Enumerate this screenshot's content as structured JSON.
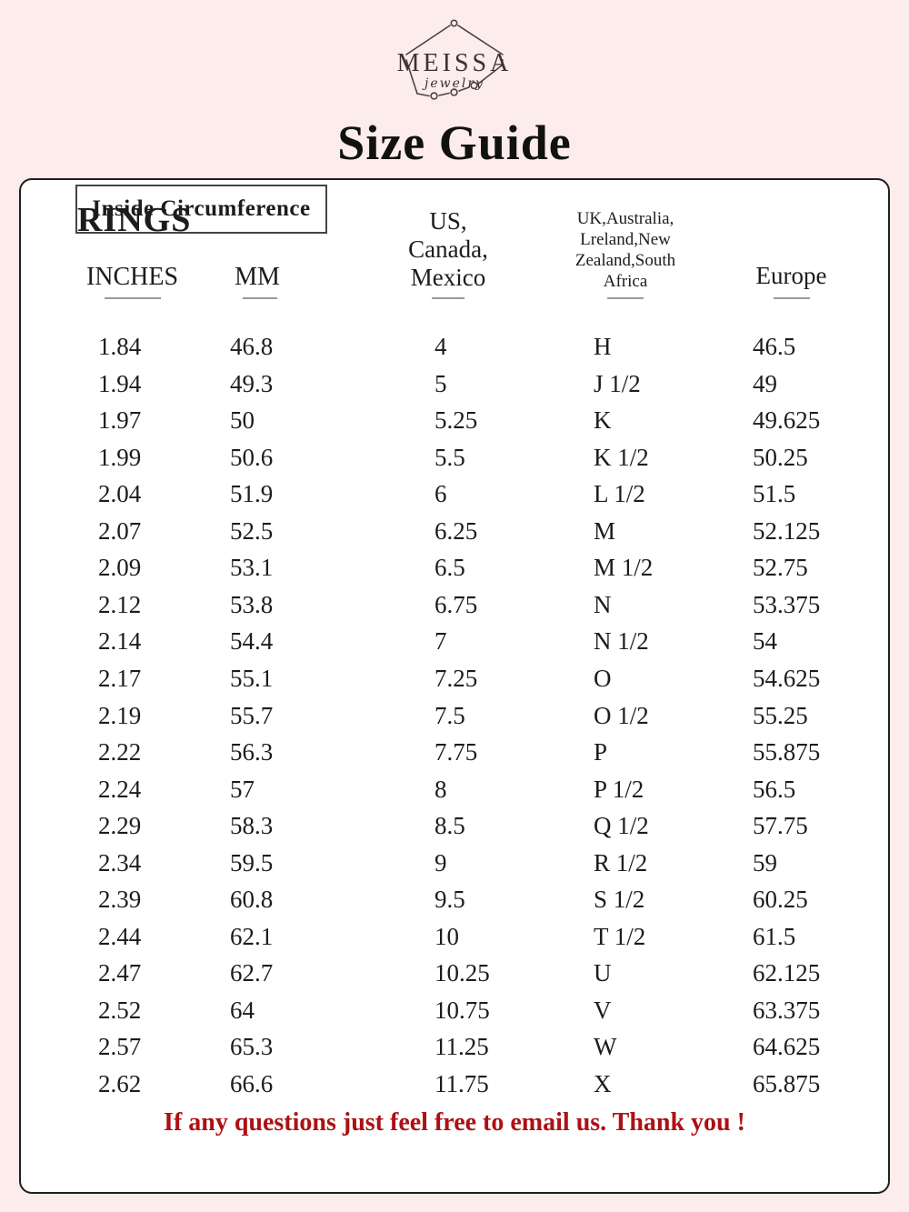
{
  "brand": {
    "name": "MEISSA",
    "tagline": "jewelry"
  },
  "title": "Size Guide",
  "card": {
    "section_title": "RINGS",
    "table": {
      "group_header": "Inside Circumference",
      "columns": {
        "inches": "INCHES",
        "mm": "MM",
        "us": [
          "US,",
          "Canada,",
          "Mexico"
        ],
        "uk": [
          "UK,Australia,",
          "Lreland,New",
          "Zealand,South",
          "Africa"
        ],
        "europe": "Europe"
      },
      "rows": [
        {
          "inches": "1.84",
          "mm": "46.8",
          "us": "4",
          "uk": "H",
          "europe": "46.5"
        },
        {
          "inches": "1.94",
          "mm": "49.3",
          "us": "5",
          "uk": "J 1/2",
          "europe": "49"
        },
        {
          "inches": "1.97",
          "mm": "50",
          "us": "5.25",
          "uk": "K",
          "europe": "49.625"
        },
        {
          "inches": "1.99",
          "mm": "50.6",
          "us": "5.5",
          "uk": "K 1/2",
          "europe": "50.25"
        },
        {
          "inches": "2.04",
          "mm": "51.9",
          "us": "6",
          "uk": "L 1/2",
          "europe": "51.5"
        },
        {
          "inches": "2.07",
          "mm": "52.5",
          "us": "6.25",
          "uk": "M",
          "europe": "52.125"
        },
        {
          "inches": "2.09",
          "mm": "53.1",
          "us": "6.5",
          "uk": "M 1/2",
          "europe": "52.75"
        },
        {
          "inches": "2.12",
          "mm": "53.8",
          "us": "6.75",
          "uk": "N",
          "europe": "53.375"
        },
        {
          "inches": "2.14",
          "mm": "54.4",
          "us": "7",
          "uk": "N 1/2",
          "europe": "54"
        },
        {
          "inches": "2.17",
          "mm": "55.1",
          "us": "7.25",
          "uk": "O",
          "europe": "54.625"
        },
        {
          "inches": "2.19",
          "mm": "55.7",
          "us": "7.5",
          "uk": "O 1/2",
          "europe": "55.25"
        },
        {
          "inches": "2.22",
          "mm": "56.3",
          "us": "7.75",
          "uk": "P",
          "europe": "55.875"
        },
        {
          "inches": "2.24",
          "mm": "57",
          "us": "8",
          "uk": "P 1/2",
          "europe": "56.5"
        },
        {
          "inches": "2.29",
          "mm": "58.3",
          "us": "8.5",
          "uk": "Q 1/2",
          "europe": "57.75"
        },
        {
          "inches": "2.34",
          "mm": "59.5",
          "us": "9",
          "uk": "R 1/2",
          "europe": "59"
        },
        {
          "inches": "2.39",
          "mm": "60.8",
          "us": "9.5",
          "uk": "S 1/2",
          "europe": "60.25"
        },
        {
          "inches": "2.44",
          "mm": "62.1",
          "us": "10",
          "uk": "T 1/2",
          "europe": "61.5"
        },
        {
          "inches": "2.47",
          "mm": "62.7",
          "us": "10.25",
          "uk": "U",
          "europe": "62.125"
        },
        {
          "inches": "2.52",
          "mm": "64",
          "us": "10.75",
          "uk": "V",
          "europe": "63.375"
        },
        {
          "inches": "2.57",
          "mm": "65.3",
          "us": "11.25",
          "uk": "W",
          "europe": "64.625"
        },
        {
          "inches": "2.62",
          "mm": "66.6",
          "us": "11.75",
          "uk": "X",
          "europe": "65.875"
        }
      ]
    },
    "footer_note": "If any questions just feel free to email us. Thank you !"
  },
  "colors": {
    "page_background": "#fdecec",
    "card_background": "#ffffff",
    "card_border": "#1f1f1f",
    "text": "#1c1c1c",
    "footer_red": "#ae1014",
    "underline_gray": "#9a9a9a"
  }
}
